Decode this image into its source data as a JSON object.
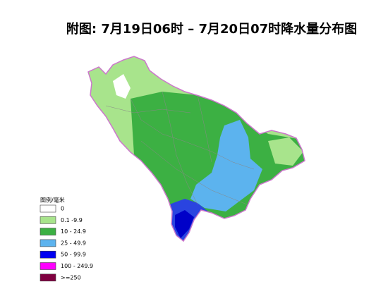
{
  "title": "附图: 7月19日06时 – 7月20日07时降水量分布图",
  "legend": {
    "title": "图例/毫米",
    "items": [
      {
        "label": "0",
        "color": "#ffffff"
      },
      {
        "label": "0.1 -9.9",
        "color": "#a8e48c"
      },
      {
        "label": "10 - 24.9",
        "color": "#3cb043"
      },
      {
        "label": "25 - 49.9",
        "color": "#5cb3ee"
      },
      {
        "label": "50 - 99.9",
        "color": "#0000f0"
      },
      {
        "label": "100 - 249.9",
        "color": "#ff00ff"
      },
      {
        "label": ">=250",
        "color": "#800040"
      }
    ]
  }
}
